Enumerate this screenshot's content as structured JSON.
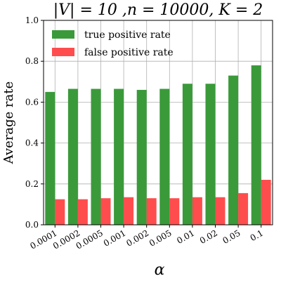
{
  "chart_data": {
    "type": "bar",
    "title": "|V| = 10 ,n = 10000, K = 2",
    "xlabel": "α",
    "ylabel": "Average rate",
    "categories": [
      "0.0001",
      "0.0002",
      "0.0005",
      "0.001",
      "0.002",
      "0.005",
      "0.01",
      "0.02",
      "0.05",
      "0.1"
    ],
    "series": [
      {
        "name": "true positive rate",
        "color": "#3a9a3a",
        "values": [
          0.65,
          0.665,
          0.665,
          0.665,
          0.66,
          0.665,
          0.69,
          0.69,
          0.73,
          0.78
        ]
      },
      {
        "name": "false positive rate",
        "color": "#ff4d4d",
        "values": [
          0.125,
          0.125,
          0.13,
          0.135,
          0.13,
          0.13,
          0.135,
          0.135,
          0.155,
          0.22
        ]
      }
    ],
    "ylim": [
      0.0,
      1.0
    ],
    "yticks": [
      "0.0",
      "0.2",
      "0.4",
      "0.6",
      "0.8",
      "1.0"
    ],
    "grid": true,
    "legend": "top-left"
  }
}
